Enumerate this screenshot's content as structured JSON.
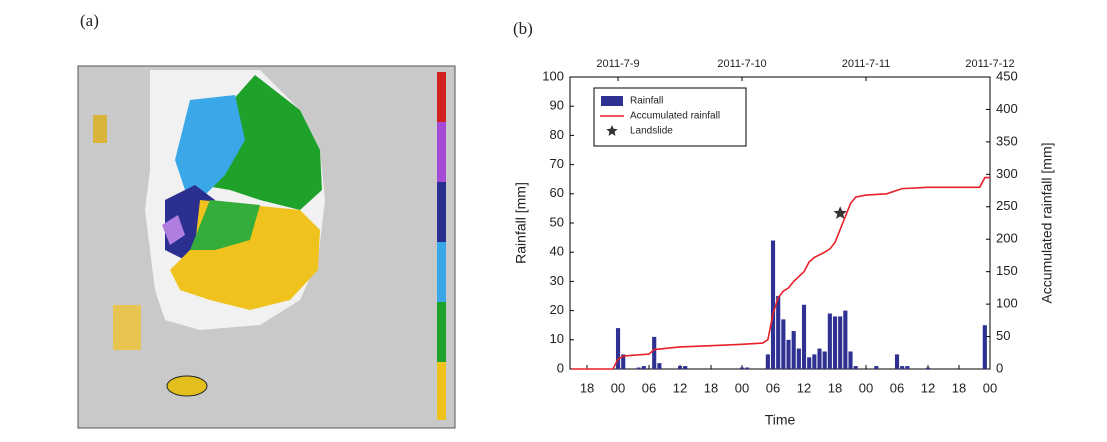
{
  "map_panel": {
    "label": "(a)"
  },
  "chart_data": {
    "type": "combo",
    "panel_label": "(b)",
    "xlabel": "Time",
    "ylabel": "Rainfall [mm]",
    "y2label": "Accumulated rainfall [mm]",
    "xlim": [
      -9.3,
      72
    ],
    "xticks": [
      {
        "value": -6,
        "label": "18"
      },
      {
        "value": 0,
        "label": "00"
      },
      {
        "value": 6,
        "label": "06"
      },
      {
        "value": 12,
        "label": "12"
      },
      {
        "value": 18,
        "label": "18"
      },
      {
        "value": 24,
        "label": "00"
      },
      {
        "value": 30,
        "label": "06"
      },
      {
        "value": 36,
        "label": "12"
      },
      {
        "value": 42,
        "label": "18"
      },
      {
        "value": 48,
        "label": "00"
      },
      {
        "value": 54,
        "label": "06"
      },
      {
        "value": 60,
        "label": "12"
      },
      {
        "value": 66,
        "label": "18"
      },
      {
        "value": 72,
        "label": "00"
      }
    ],
    "x2ticks": [
      {
        "value": 0,
        "label": "2011-7-9"
      },
      {
        "value": 24,
        "label": "2011-7-10"
      },
      {
        "value": 48,
        "label": "2011-7-11"
      },
      {
        "value": 72,
        "label": "2011-7-12"
      }
    ],
    "ylim": [
      0,
      100
    ],
    "yticks": [
      0,
      10,
      20,
      30,
      40,
      50,
      60,
      70,
      80,
      90,
      100
    ],
    "y2lim": [
      0,
      450
    ],
    "y2ticks": [
      0,
      50,
      100,
      150,
      200,
      250,
      300,
      350,
      400,
      450
    ],
    "grid": false,
    "legend": "upper-left",
    "series": [
      {
        "name": "Rainfall",
        "type": "bar",
        "color": "#2e3192",
        "x": [
          0,
          1,
          4,
          5,
          7,
          8,
          12,
          13,
          24,
          25,
          29,
          30,
          31,
          32,
          33,
          34,
          35,
          36,
          37,
          38,
          39,
          40,
          41,
          42,
          43,
          44,
          45,
          46,
          50,
          54,
          55,
          56,
          60,
          71
        ],
        "values": [
          14,
          5,
          0.5,
          1,
          11,
          2,
          1,
          1,
          0.5,
          0.5,
          5,
          44,
          25,
          17,
          10,
          13,
          7,
          22,
          4,
          5,
          7,
          6,
          19,
          18,
          18,
          20,
          6,
          1,
          1,
          5,
          1,
          1,
          0.5,
          15
        ]
      },
      {
        "name": "Accumulated rainfall",
        "type": "line",
        "axis": "y2",
        "color": "#e8202a",
        "x": [
          -9,
          -1,
          0,
          1,
          6,
          7,
          12,
          18,
          24,
          28,
          29,
          30,
          31,
          32,
          33,
          34,
          36,
          37,
          38,
          40,
          41,
          42,
          43,
          44,
          45,
          46,
          48,
          52,
          55,
          60,
          70,
          71,
          72
        ],
        "values": [
          0,
          0,
          15,
          20,
          23,
          30,
          34,
          36,
          38,
          40,
          45,
          85,
          110,
          120,
          125,
          135,
          150,
          165,
          172,
          180,
          185,
          195,
          215,
          235,
          255,
          265,
          268,
          270,
          278,
          280,
          280,
          295,
          295
        ]
      },
      {
        "name": "Landslide",
        "type": "scatter",
        "marker": "star",
        "axis": "y2",
        "color": "#333333",
        "x": [
          43
        ],
        "values": [
          240
        ]
      }
    ]
  }
}
